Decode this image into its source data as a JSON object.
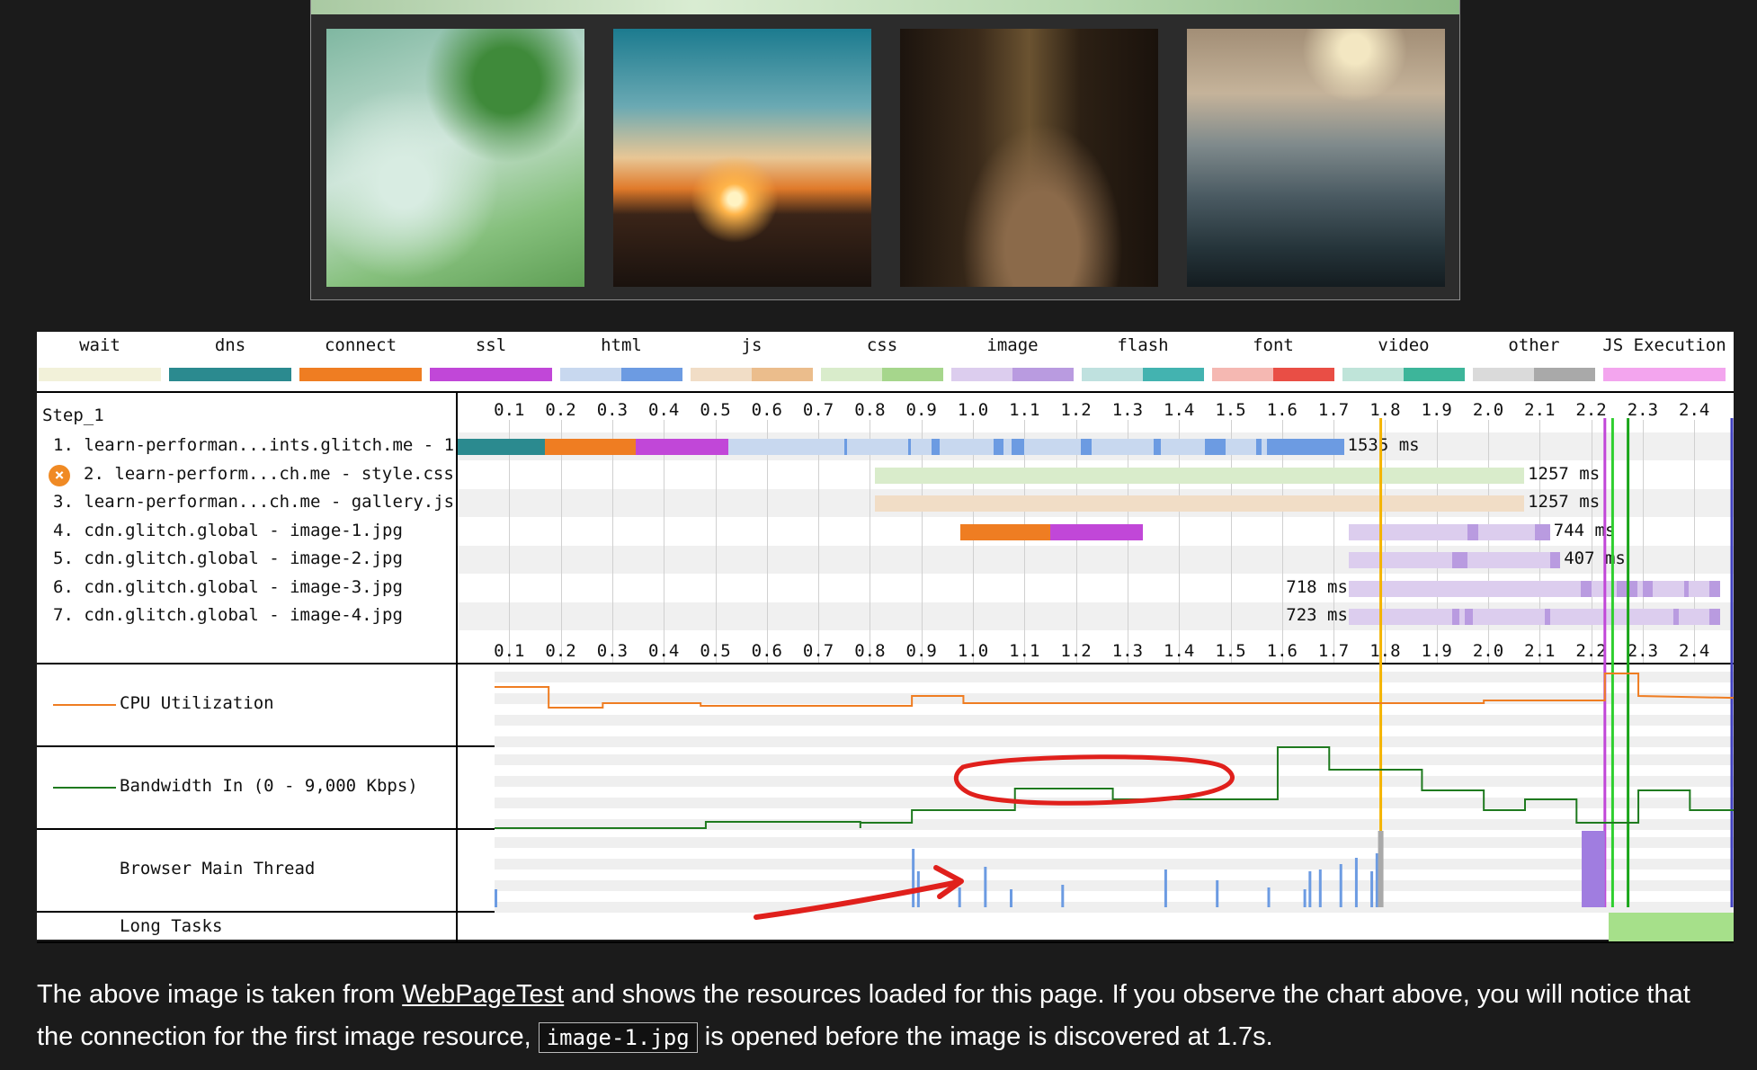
{
  "legend": [
    {
      "label": "wait",
      "color_a": "#f2f1d9",
      "color_b": "#f2f1d9"
    },
    {
      "label": "dns",
      "color_a": "#2b8a8f",
      "color_b": "#2b8a8f"
    },
    {
      "label": "connect",
      "color_a": "#ef7d22",
      "color_b": "#ef7d22"
    },
    {
      "label": "ssl",
      "color_a": "#c147d8",
      "color_b": "#c147d8"
    },
    {
      "label": "html",
      "color_a": "#c8d8ef",
      "color_b": "#6c9be2"
    },
    {
      "label": "js",
      "color_a": "#f1ddc6",
      "color_b": "#ebbd8c"
    },
    {
      "label": "css",
      "color_a": "#d9eccb",
      "color_b": "#a6d68c"
    },
    {
      "label": "image",
      "color_a": "#dccdee",
      "color_b": "#b99be0"
    },
    {
      "label": "flash",
      "color_a": "#bfe1df",
      "color_b": "#43b3b0"
    },
    {
      "label": "font",
      "color_a": "#f5b8b2",
      "color_b": "#e94e45"
    },
    {
      "label": "video",
      "color_a": "#bfe4d9",
      "color_b": "#3db59a"
    },
    {
      "label": "other",
      "color_a": "#dadada",
      "color_b": "#a9a9a9"
    },
    {
      "label": "JS Execution",
      "color_a": "#f3a5ee",
      "color_b": "#f3a5ee"
    }
  ],
  "step": "Step_1",
  "ticks": [
    "0.1",
    "0.2",
    "0.3",
    "0.4",
    "0.5",
    "0.6",
    "0.7",
    "0.8",
    "0.9",
    "1.0",
    "1.1",
    "1.2",
    "1.3",
    "1.4",
    "1.5",
    "1.6",
    "1.7",
    "1.8",
    "1.9",
    "2.0",
    "2.1",
    "2.2",
    "2.3",
    "2.4"
  ],
  "requests": [
    {
      "label": "1. learn-performan...ints.glitch.me - 1",
      "ms": "1535 ms",
      "error": false
    },
    {
      "label": "2. learn-perform...ch.me - style.css",
      "ms": "1257 ms",
      "error": true
    },
    {
      "label": "3. learn-performan...ch.me - gallery.js",
      "ms": "1257 ms",
      "error": false
    },
    {
      "label": "4. cdn.glitch.global - image-1.jpg",
      "ms": "744 ms",
      "error": false
    },
    {
      "label": "5. cdn.glitch.global - image-2.jpg",
      "ms": "407 ms",
      "error": false
    },
    {
      "label": "6. cdn.glitch.global - image-3.jpg",
      "ms": "718 ms",
      "error": false
    },
    {
      "label": "7. cdn.glitch.global - image-4.jpg",
      "ms": "723 ms",
      "error": false
    }
  ],
  "panels": {
    "cpu": "CPU Utilization",
    "bandwidth": "Bandwidth In (0 - 9,000 Kbps)",
    "main_thread": "Browser Main Thread",
    "long_tasks": "Long Tasks"
  },
  "caption": {
    "before_link": "The above image is taken from ",
    "link": "WebPageTest",
    "after_link": " and shows the resources loaded for this page. If you observe the chart above, you will notice that the connection for the first image resource, ",
    "code": "image-1.jpg",
    "end": " is opened before the image is discovered at 1.7s."
  }
}
